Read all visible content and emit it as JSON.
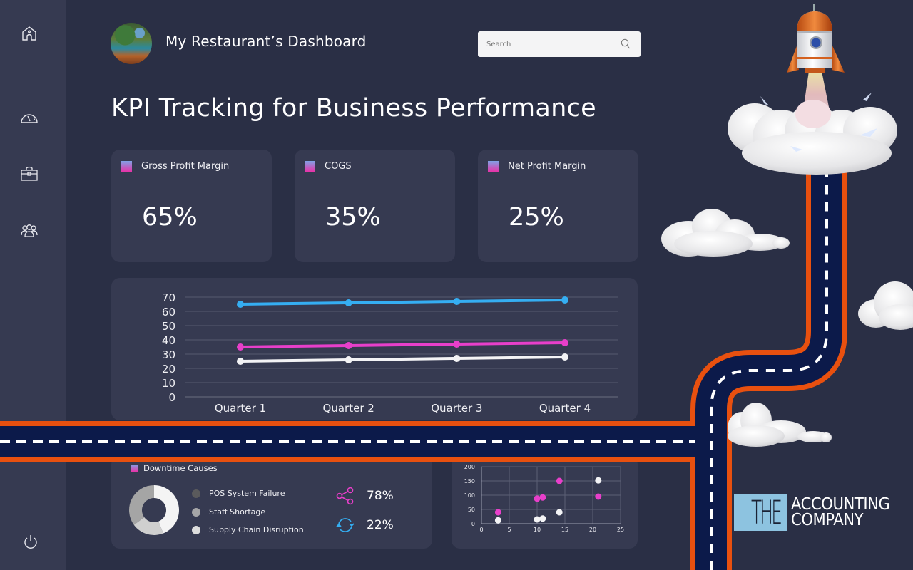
{
  "app": {
    "title": "My Restaurant’s Dashboard",
    "page_title": "KPI Tracking for Business Performance"
  },
  "search": {
    "placeholder": "Search"
  },
  "sidebar": {
    "items": [
      {
        "name": "home",
        "icon": "home-icon"
      },
      {
        "name": "dashboard",
        "icon": "gauge-icon"
      },
      {
        "name": "portfolio",
        "icon": "briefcase-icon"
      },
      {
        "name": "team",
        "icon": "users-icon"
      },
      {
        "name": "logout",
        "icon": "power-icon"
      }
    ]
  },
  "kpis": [
    {
      "label": "Gross Profit Margin",
      "value": "65%"
    },
    {
      "label": "COGS",
      "value": "35%"
    },
    {
      "label": "Net Profit Margin",
      "value": "25%"
    }
  ],
  "colors": {
    "blue": "#35aef2",
    "pink": "#e83fca",
    "white": "#f3f3f5",
    "road": "#0c1a4a",
    "road_border": "#e8500f"
  },
  "chart_data": [
    {
      "type": "line",
      "categories": [
        "Quarter 1",
        "Quarter 2",
        "Quarter 3",
        "Quarter 4"
      ],
      "series": [
        {
          "name": "Gross Profit Margin",
          "color": "#35aef2",
          "values": [
            65,
            66,
            67,
            68
          ]
        },
        {
          "name": "COGS",
          "color": "#e83fca",
          "values": [
            35,
            36,
            37,
            38
          ]
        },
        {
          "name": "Net Profit Margin",
          "color": "#f3f3f5",
          "values": [
            25,
            26,
            27,
            28
          ]
        }
      ],
      "yticks": [
        "0",
        "10",
        "20",
        "30",
        "40",
        "50",
        "60",
        "70"
      ],
      "ylim": [
        0,
        70
      ],
      "grid": true
    },
    {
      "type": "pie",
      "title": "Downtime Causes",
      "labels": [
        "POS System Failure",
        "Staff Shortage",
        "Supply Chain Disruption"
      ],
      "colors": [
        "#5a5a5c",
        "#a5a5a7",
        "#dcdcdc"
      ],
      "segments": [
        {
          "label": "Supply Chain Disruption",
          "value": 44,
          "color": "#f4f4f4"
        },
        {
          "label": "Staff Shortage",
          "value": 21,
          "color": "#cfcfcf"
        },
        {
          "label": "POS System Failure",
          "value": 35,
          "color": "#a5a5a5"
        }
      ]
    },
    {
      "type": "scatter",
      "series": [
        {
          "name": "pink",
          "color": "#e83fca",
          "points": [
            [
              3,
              40
            ],
            [
              10,
              88
            ],
            [
              11,
              92
            ],
            [
              14,
              150
            ],
            [
              21,
              95
            ]
          ]
        },
        {
          "name": "white",
          "color": "#f3f3f5",
          "points": [
            [
              3,
              12
            ],
            [
              10,
              15
            ],
            [
              11,
              18
            ],
            [
              14,
              40
            ],
            [
              21,
              152
            ]
          ]
        }
      ],
      "xticks": [
        "0",
        "5",
        "10",
        "15",
        "20",
        "25"
      ],
      "yticks": [
        "0",
        "50",
        "100",
        "150",
        "200"
      ],
      "xlim": [
        0,
        25
      ],
      "ylim": [
        0,
        200
      ],
      "grid": true
    }
  ],
  "stats": [
    {
      "icon": "share-icon",
      "value": "78%"
    },
    {
      "icon": "refresh-icon",
      "value": "22%"
    }
  ],
  "logo": {
    "the": "THE",
    "line1": "ACCOUNTING",
    "line2": "COMPANY"
  }
}
